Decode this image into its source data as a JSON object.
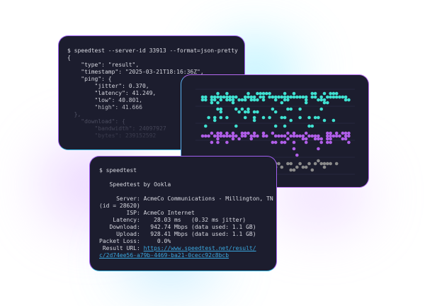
{
  "json_terminal": {
    "command": "$ speedtest --server-id 33913 --format=json-pretty",
    "lines": [
      "{",
      "    \"type\": \"result\",",
      "    \"timestamp\": \"2025-03-21T18:16:36Z\",",
      "    \"ping\": {",
      "        \"jitter\": 0.370,",
      "        \"latency\": 41.249,",
      "        \"low\": 40.801,",
      "        \"high\": 41.666",
      "  },",
      "    \"download\": {",
      "        \"bandwidth\": 24097927",
      "        \"bytes\": 239152592"
    ]
  },
  "chart_card": {
    "series_colors": {
      "upper": "#3fe0d0",
      "middle": "#b05ee8",
      "lower": "#8a8a8a"
    },
    "chart_type": "dot strip plot"
  },
  "text_terminal": {
    "command": "$ speedtest",
    "title": "   Speedtest by Ookla",
    "lines": [
      "     Server: AcmeCo Communications - Millington, TN",
      "(id = 28620)",
      "        ISP: AcmeCo Internet",
      "    Latency:    28.03 ms   (0.32 ms jitter)",
      "   Download:   942.74 Mbps (data used: 1.1 GB)",
      "     Upload:   928.41 Mbps (data used: 1.1 GB)",
      "Packet Loss:     0.0%"
    ],
    "result_label": " Result URL: ",
    "result_url_1": "https://www.speedtest.net/result/",
    "result_url_2": "c/2d74ee56-a79b-4469-ba21-0cecc92c8bcb"
  }
}
